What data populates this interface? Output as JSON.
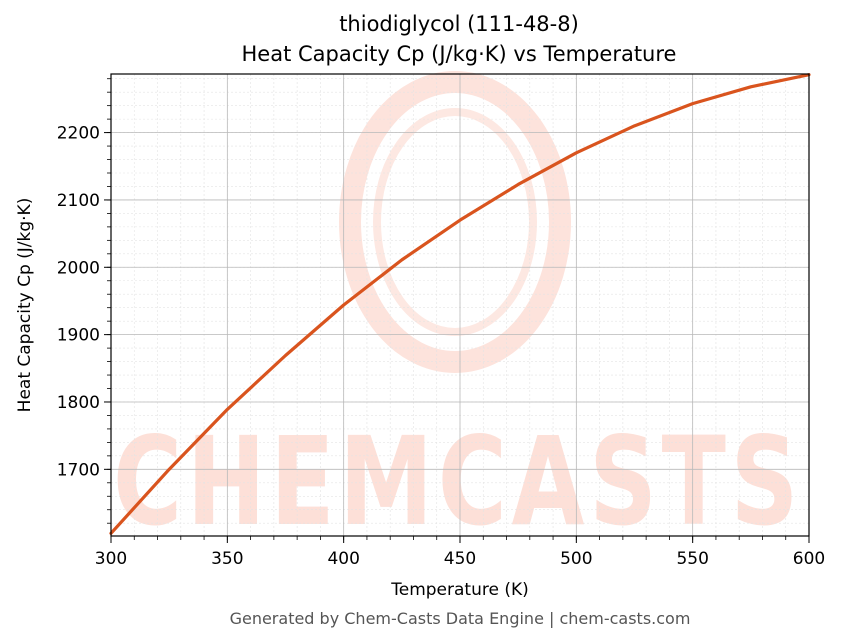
{
  "chart_data": {
    "type": "line",
    "title_line1": "thiodiglycol (111-48-8)",
    "title_line2": "Heat Capacity Cp (J/kg·K) vs Temperature",
    "xlabel": "Temperature (K)",
    "ylabel": "Heat Capacity Cp (J/kg·K)",
    "xlim": [
      300,
      600
    ],
    "ylim": [
      1601,
      2287
    ],
    "x_ticks": [
      300,
      350,
      400,
      450,
      500,
      550,
      600
    ],
    "y_ticks": [
      1700,
      1800,
      1900,
      2000,
      2100,
      2200
    ],
    "grid": true,
    "line_color": "#d9541e",
    "series": [
      {
        "x": [
          300,
          325,
          350,
          375,
          400,
          425,
          450,
          475,
          500,
          525,
          550,
          575,
          600
        ],
        "y": [
          1605,
          1700,
          1789,
          1869,
          1944,
          2011,
          2070,
          2123,
          2170,
          2210,
          2243,
          2268,
          2286
        ]
      }
    ]
  },
  "watermark": "CHEMCASTS",
  "footer": "Generated by Chem-Casts Data Engine | chem-casts.com"
}
